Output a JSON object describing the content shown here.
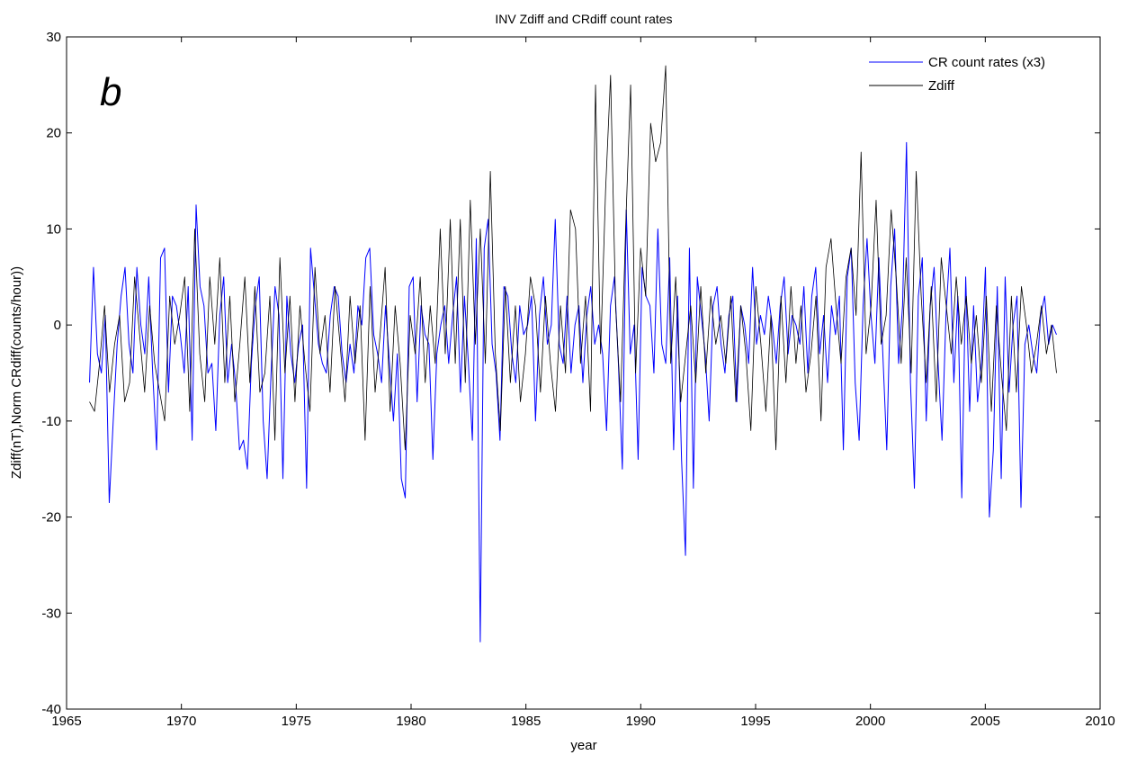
{
  "chart_data": {
    "type": "line",
    "title": "INV Zdiff and CRdiff count rates",
    "panel_label": "b",
    "xlabel": "year",
    "ylabel": "Zdiff(nT),Norm CRdiff(counts/hour))",
    "xlim": [
      1965,
      2010
    ],
    "ylim": [
      -40,
      30
    ],
    "x_ticks": [
      1965,
      1970,
      1975,
      1980,
      1985,
      1990,
      1995,
      2000,
      2005,
      2010
    ],
    "y_ticks": [
      -40,
      -30,
      -20,
      -10,
      0,
      10,
      20,
      30
    ],
    "x_tick_labels": [
      "1965",
      "1970",
      "1975",
      "1980",
      "1985",
      "1990",
      "1995",
      "2000",
      "2005",
      "2010"
    ],
    "y_tick_labels": [
      "-40",
      "-30",
      "-20",
      "-10",
      "0",
      "10",
      "20",
      "30"
    ],
    "grid": false,
    "legend_position": "top-right",
    "x_start": 1966.0,
    "x_end": 2008.1,
    "series": [
      {
        "name": "CR count rates (x3)",
        "color": "#0000ff",
        "values": [
          -6,
          6,
          -3,
          -5,
          1,
          -18.5,
          -10,
          -2,
          3,
          6,
          -2,
          -5,
          6,
          0,
          -3,
          5,
          -5,
          -13,
          7,
          8,
          -7,
          3,
          2,
          -1,
          -5,
          4,
          -12,
          12.5,
          4,
          2,
          -5,
          -4,
          -11,
          1,
          5,
          -6,
          -2,
          -6,
          -13,
          -12,
          -15,
          -4,
          2,
          5,
          -10,
          -16,
          -5,
          4,
          1,
          -16,
          3,
          -3,
          -6,
          -2,
          0,
          -17,
          8,
          3,
          -2,
          -4,
          -5,
          1,
          4,
          3,
          -3,
          -6,
          -2,
          -5,
          2,
          0,
          7,
          8,
          -1,
          -3,
          -6,
          2,
          -4,
          -10,
          -3,
          -16,
          -18,
          4,
          5,
          -8,
          2,
          -1,
          -2,
          -14,
          -3,
          0,
          2,
          -4,
          1,
          5,
          -7,
          3,
          -4,
          -12,
          9,
          -33,
          8,
          11,
          -2,
          -5,
          -12,
          4,
          3,
          -3,
          -6,
          2,
          -1,
          0,
          3,
          -10,
          1,
          5,
          -2,
          0,
          11,
          -2,
          -4,
          3,
          -5,
          0,
          2,
          -6,
          1,
          4,
          -2,
          0,
          -3,
          -11,
          2,
          5,
          -4,
          -15,
          12,
          -3,
          0,
          -14,
          6,
          3,
          2,
          -5,
          10,
          -2,
          -4,
          7,
          -13,
          3,
          -14,
          -24,
          8,
          -17,
          5,
          1,
          -3,
          -10,
          2,
          4,
          -2,
          -5,
          1,
          3,
          -8,
          2,
          0,
          -4,
          6,
          -2,
          1,
          -1,
          3,
          0,
          -4,
          2,
          5,
          -3,
          1,
          0,
          -2,
          4,
          -5,
          3,
          6,
          -3,
          1,
          -6,
          2,
          -1,
          3,
          -13,
          5,
          8,
          -6,
          -12,
          2,
          9,
          1,
          -4,
          7,
          -3,
          -13,
          4,
          10,
          -4,
          2,
          19,
          -6,
          -17,
          3,
          7,
          -10,
          2,
          6,
          -4,
          -12,
          1,
          8,
          -6,
          3,
          -18,
          5,
          -9,
          2,
          -8,
          -4,
          6,
          -20,
          -13,
          4,
          -16,
          5,
          -7,
          0,
          3,
          -19,
          -2,
          0,
          -3,
          -5,
          1,
          3,
          -2,
          0,
          -1
        ]
      },
      {
        "name": "Zdiff",
        "color": "#000000",
        "values": [
          -8,
          -9,
          -4,
          2,
          -7,
          -2,
          1,
          -8,
          -6,
          5,
          -1,
          -7,
          2,
          -4,
          -7,
          -10,
          3,
          -2,
          1,
          5,
          -9,
          10,
          -3,
          -8,
          5,
          -2,
          7,
          -6,
          3,
          -8,
          -2,
          5,
          -6,
          4,
          -7,
          -5,
          3,
          -12,
          7,
          -5,
          3,
          -8,
          2,
          -4,
          -9,
          6,
          -3,
          1,
          -7,
          4,
          -2,
          -8,
          3,
          -4,
          2,
          -12,
          4,
          -7,
          -1,
          6,
          -9,
          2,
          -4,
          -13,
          1,
          -3,
          5,
          -6,
          2,
          -4,
          10,
          -3,
          11,
          -4,
          11,
          -6,
          13,
          -2,
          10,
          -4,
          16,
          -3,
          -11,
          4,
          -6,
          2,
          -8,
          -3,
          5,
          2,
          -7,
          3,
          -4,
          -9,
          2,
          -5,
          12,
          10,
          -4,
          3,
          -9,
          25,
          -3,
          14,
          26,
          2,
          -8,
          10,
          25,
          -5,
          8,
          3,
          21,
          17,
          19,
          27,
          -4,
          5,
          -8,
          -3,
          2,
          -6,
          4,
          -5,
          3,
          -2,
          1,
          -4,
          3,
          -8,
          2,
          -3,
          -11,
          4,
          -2,
          -9,
          1,
          -13,
          3,
          -6,
          4,
          -4,
          2,
          -7,
          -3,
          3,
          -10,
          6,
          9,
          2,
          -4,
          5,
          8,
          1,
          18,
          -3,
          2,
          13,
          -2,
          1,
          12,
          5,
          -4,
          7,
          -5,
          16,
          3,
          -6,
          4,
          -8,
          7,
          2,
          -3,
          5,
          -2,
          3,
          -4,
          1,
          -6,
          3,
          -9,
          2,
          -5,
          -11,
          3,
          -7,
          4,
          0,
          -5,
          -2,
          2,
          -3,
          0,
          -5
        ]
      }
    ]
  }
}
